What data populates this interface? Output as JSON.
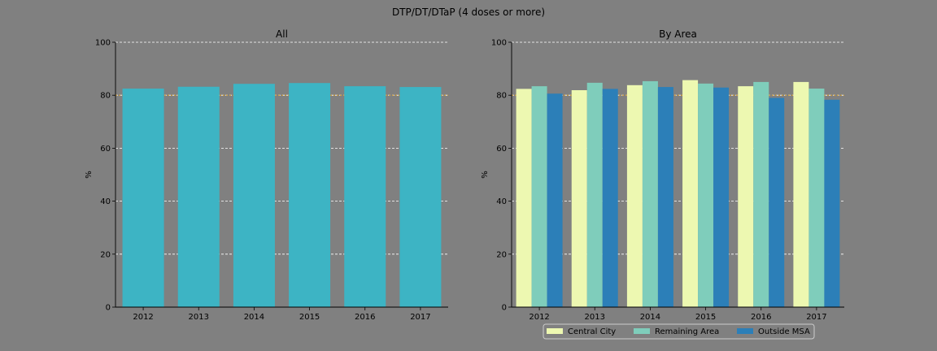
{
  "figure": {
    "suptitle": "DTP/DT/DTaP (4 doses or more)"
  },
  "colors": {
    "background": "#808080",
    "single_bar": "#3db4c4",
    "reference_line": "#e8a317",
    "grid": "#ffffff"
  },
  "chart_data": [
    {
      "type": "bar",
      "title": "All",
      "ylabel": "%",
      "xlabel": "",
      "ylim": [
        0,
        100
      ],
      "yticks": [
        0,
        20,
        40,
        60,
        80,
        100
      ],
      "grid": "y-dashed",
      "reference_line": 80,
      "categories": [
        "2012",
        "2013",
        "2014",
        "2015",
        "2016",
        "2017"
      ],
      "series": [
        {
          "color": "#3db4c4",
          "values": [
            82.5,
            83.2,
            84.3,
            84.6,
            83.4,
            83.1
          ]
        }
      ]
    },
    {
      "type": "bar",
      "title": "By Area",
      "ylabel": "%",
      "xlabel": "",
      "ylim": [
        0,
        100
      ],
      "yticks": [
        0,
        20,
        40,
        60,
        80,
        100
      ],
      "grid": "y-dashed",
      "reference_line": 80,
      "legend_position": "bottom-center",
      "categories": [
        "2012",
        "2013",
        "2014",
        "2015",
        "2016",
        "2017"
      ],
      "series": [
        {
          "name": "Central City",
          "color": "#edf8b1",
          "values": [
            82.4,
            81.9,
            83.8,
            85.7,
            83.4,
            85.0
          ]
        },
        {
          "name": "Remaining Area",
          "color": "#7fcdbb",
          "values": [
            83.4,
            84.7,
            85.3,
            84.4,
            85.0,
            82.5
          ]
        },
        {
          "name": "Outside MSA",
          "color": "#2c7fb8",
          "values": [
            80.6,
            82.4,
            83.1,
            82.9,
            79.0,
            78.3
          ]
        }
      ]
    }
  ]
}
